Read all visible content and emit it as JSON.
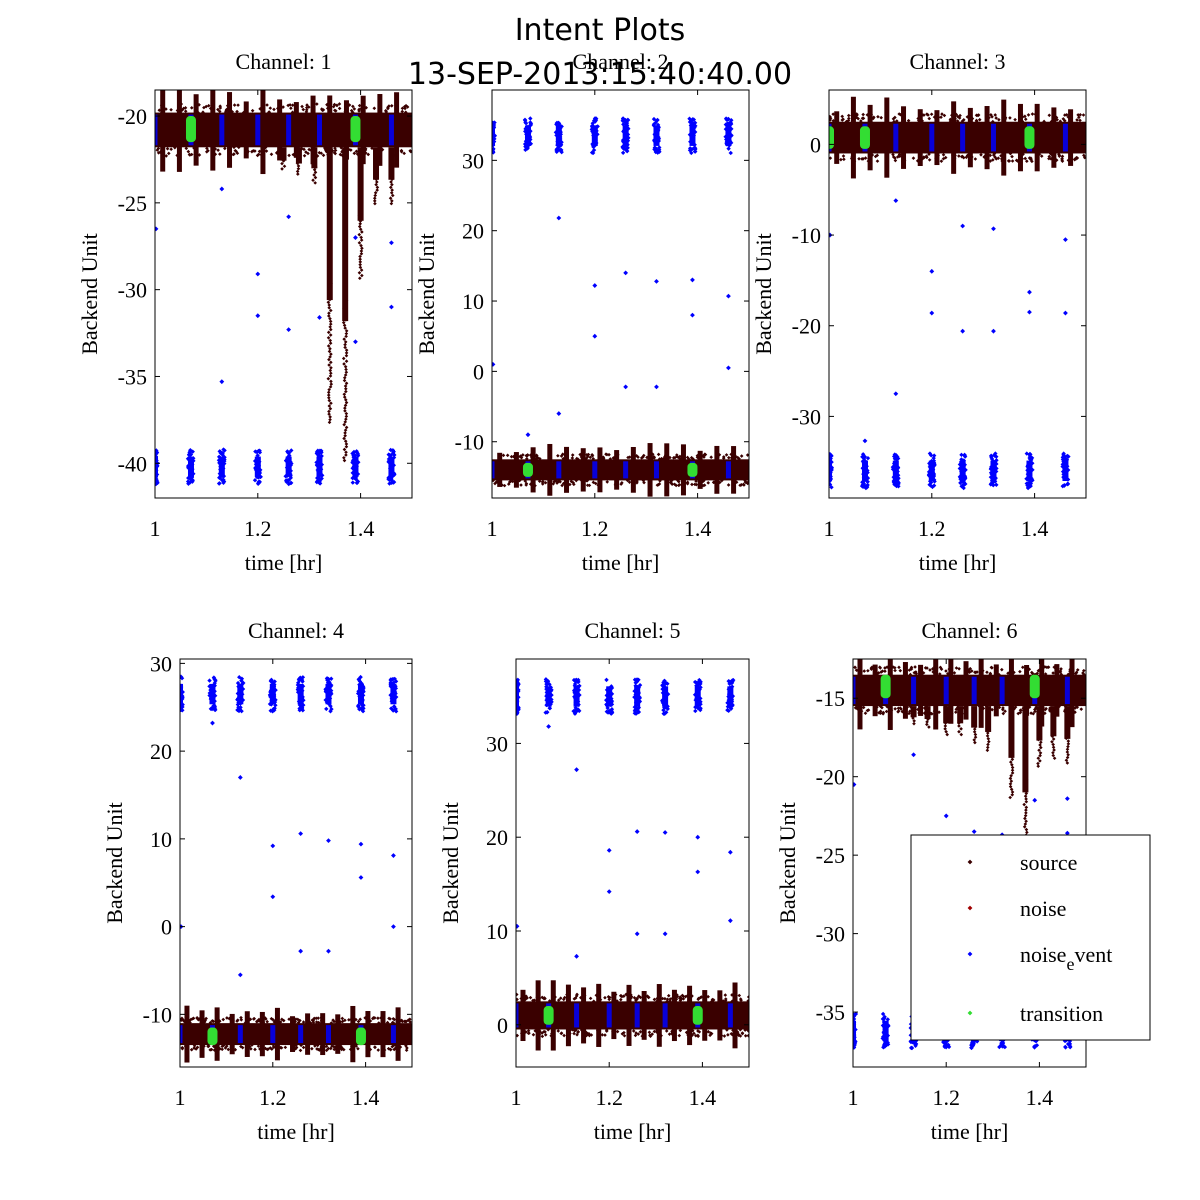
{
  "figure": {
    "title": "Intent Plots",
    "subtitle": "13-SEP-2013:15:40:40.00"
  },
  "colors": {
    "source": "#3a0000",
    "noise": "#a00000",
    "noise_event": "#0000ff",
    "transition": "#33dd33",
    "axes": "#000000",
    "background": "#ffffff"
  },
  "legend": {
    "placement": "lower-right of Channel 6",
    "entries": [
      {
        "label": "source",
        "series": "source"
      },
      {
        "label": "noise",
        "series": "noise"
      },
      {
        "label": "noise",
        "subscript": "e",
        "label_tail": "vent",
        "series": "noise_event"
      },
      {
        "label": "transition",
        "series": "transition"
      }
    ]
  },
  "chart_data": [
    {
      "type": "scatter",
      "title": "Channel: 1",
      "xlabel": "time [hr]",
      "ylabel": "Backend Unit",
      "xlim": [
        1,
        1.5
      ],
      "ylim": [
        -42,
        -18.5
      ],
      "xticks": [
        "1",
        "1.2",
        "1.4"
      ],
      "yticks": [
        "-20",
        "-25",
        "-30",
        "-35",
        "-40"
      ],
      "grid": false,
      "series": [
        {
          "key": "source",
          "band": [
            -21.8,
            -19.8
          ],
          "tails": [
            {
              "x": 1.25,
              "to": -23.2
            },
            {
              "x": 1.28,
              "to": -23.5
            },
            {
              "x": 1.31,
              "to": -24.0
            },
            {
              "x": 1.34,
              "to": -37.8
            },
            {
              "x": 1.37,
              "to": -40.0
            },
            {
              "x": 1.4,
              "to": -29.5
            },
            {
              "x": 1.43,
              "to": -25.2
            },
            {
              "x": 1.46,
              "to": -25.2
            }
          ]
        },
        {
          "key": "noise_event",
          "clusters_at": -40.2,
          "cluster_x": [
            1.0,
            1.07,
            1.13,
            1.2,
            1.26,
            1.32,
            1.39,
            1.46
          ],
          "outliers": [
            [
              1.0,
              -26.5
            ],
            [
              1.13,
              -35.3
            ],
            [
              1.2,
              -29.1
            ],
            [
              1.2,
              -31.5
            ],
            [
              1.26,
              -25.8
            ],
            [
              1.26,
              -32.3
            ],
            [
              1.32,
              -31.6
            ],
            [
              1.39,
              -33.0
            ],
            [
              1.39,
              -27.0
            ],
            [
              1.46,
              -27.3
            ],
            [
              1.46,
              -31.0
            ],
            [
              1.13,
              -24.2
            ]
          ]
        },
        {
          "key": "transition",
          "band": [
            -21.5,
            -20.0
          ],
          "cluster_x": [
            1.07,
            1.39
          ]
        }
      ]
    },
    {
      "type": "scatter",
      "title": "Channel: 2",
      "xlabel": "time [hr]",
      "ylabel": "Backend Unit",
      "xlim": [
        1,
        1.5
      ],
      "ylim": [
        -18,
        40
      ],
      "xticks": [
        "1",
        "1.2",
        "1.4"
      ],
      "yticks": [
        "30",
        "20",
        "10",
        "0",
        "-10"
      ],
      "grid": false,
      "series": [
        {
          "key": "source",
          "band": [
            -15.5,
            -12.5
          ],
          "tails": []
        },
        {
          "key": "noise_event",
          "clusters_at": 33.5,
          "cluster_x": [
            1.0,
            1.07,
            1.13,
            1.2,
            1.26,
            1.32,
            1.39,
            1.46
          ],
          "outliers": [
            [
              1.0,
              1.0
            ],
            [
              1.13,
              21.8
            ],
            [
              1.13,
              -6.0
            ],
            [
              1.2,
              12.2
            ],
            [
              1.2,
              5.0
            ],
            [
              1.26,
              14.0
            ],
            [
              1.26,
              -2.2
            ],
            [
              1.32,
              12.8
            ],
            [
              1.32,
              -2.2
            ],
            [
              1.39,
              13.0
            ],
            [
              1.39,
              8.0
            ],
            [
              1.46,
              10.7
            ],
            [
              1.46,
              0.5
            ],
            [
              1.07,
              -9.0
            ]
          ]
        },
        {
          "key": "transition",
          "band": [
            -15.0,
            -13.0
          ],
          "cluster_x": [
            1.07,
            1.39
          ]
        }
      ]
    },
    {
      "type": "scatter",
      "title": "Channel: 3",
      "xlabel": "time [hr]",
      "ylabel": "Backend Unit",
      "xlim": [
        1,
        1.5
      ],
      "ylim": [
        -39,
        6
      ],
      "xticks": [
        "1",
        "1.2",
        "1.4"
      ],
      "yticks": [
        "0",
        "-10",
        "-20",
        "-30"
      ],
      "grid": false,
      "series": [
        {
          "key": "source",
          "band": [
            -1.0,
            2.5
          ],
          "tails": []
        },
        {
          "key": "noise_event",
          "clusters_at": -36.0,
          "cluster_x": [
            1.0,
            1.07,
            1.13,
            1.2,
            1.26,
            1.32,
            1.39,
            1.46
          ],
          "outliers": [
            [
              1.0,
              -10.0
            ],
            [
              1.13,
              -6.2
            ],
            [
              1.13,
              -27.5
            ],
            [
              1.2,
              -14.0
            ],
            [
              1.2,
              -18.6
            ],
            [
              1.26,
              -9.0
            ],
            [
              1.26,
              -20.6
            ],
            [
              1.32,
              -9.3
            ],
            [
              1.32,
              -20.6
            ],
            [
              1.39,
              -16.3
            ],
            [
              1.39,
              -18.5
            ],
            [
              1.46,
              -10.5
            ],
            [
              1.46,
              -18.6
            ],
            [
              1.07,
              -32.7
            ]
          ]
        },
        {
          "key": "transition",
          "band": [
            -0.5,
            2.0
          ],
          "cluster_x": [
            1.0,
            1.07,
            1.39
          ]
        }
      ]
    },
    {
      "type": "scatter",
      "title": "Channel: 4",
      "xlabel": "time [hr]",
      "ylabel": "Backend Unit",
      "xlim": [
        1,
        1.5
      ],
      "ylim": [
        -16,
        30.5
      ],
      "xticks": [
        "1",
        "1.2",
        "1.4"
      ],
      "yticks": [
        "30",
        "20",
        "10",
        "0",
        "-10"
      ],
      "grid": false,
      "series": [
        {
          "key": "source",
          "band": [
            -13.5,
            -11.0
          ],
          "tails": []
        },
        {
          "key": "noise_event",
          "clusters_at": 26.5,
          "cluster_x": [
            1.0,
            1.07,
            1.13,
            1.2,
            1.26,
            1.32,
            1.39,
            1.46
          ],
          "outliers": [
            [
              1.0,
              0.0
            ],
            [
              1.13,
              17.0
            ],
            [
              1.13,
              -5.5
            ],
            [
              1.2,
              9.2
            ],
            [
              1.2,
              3.4
            ],
            [
              1.26,
              10.6
            ],
            [
              1.26,
              -2.8
            ],
            [
              1.32,
              9.8
            ],
            [
              1.32,
              -2.8
            ],
            [
              1.39,
              5.6
            ],
            [
              1.39,
              9.4
            ],
            [
              1.46,
              8.1
            ],
            [
              1.46,
              0.0
            ],
            [
              1.07,
              23.2
            ]
          ]
        },
        {
          "key": "transition",
          "band": [
            -13.5,
            -11.5
          ],
          "cluster_x": [
            1.07,
            1.39
          ]
        }
      ]
    },
    {
      "type": "scatter",
      "title": "Channel: 5",
      "xlabel": "time [hr]",
      "ylabel": "Backend Unit",
      "xlim": [
        1,
        1.5
      ],
      "ylim": [
        -4.5,
        39
      ],
      "xticks": [
        "1",
        "1.2",
        "1.4"
      ],
      "yticks": [
        "30",
        "20",
        "10",
        "0"
      ],
      "grid": false,
      "series": [
        {
          "key": "source",
          "band": [
            -0.5,
            2.5
          ],
          "tails": []
        },
        {
          "key": "noise_event",
          "clusters_at": 35.0,
          "cluster_x": [
            1.0,
            1.07,
            1.13,
            1.2,
            1.26,
            1.32,
            1.39,
            1.46
          ],
          "outliers": [
            [
              1.0,
              10.5
            ],
            [
              1.13,
              27.2
            ],
            [
              1.13,
              7.3
            ],
            [
              1.2,
              18.6
            ],
            [
              1.2,
              14.2
            ],
            [
              1.26,
              20.6
            ],
            [
              1.26,
              9.7
            ],
            [
              1.32,
              20.5
            ],
            [
              1.32,
              9.7
            ],
            [
              1.39,
              20.0
            ],
            [
              1.39,
              16.3
            ],
            [
              1.46,
              18.4
            ],
            [
              1.46,
              11.1
            ],
            [
              1.07,
              31.8
            ]
          ]
        },
        {
          "key": "transition",
          "band": [
            0.0,
            2.0
          ],
          "cluster_x": [
            1.07,
            1.39
          ]
        }
      ]
    },
    {
      "type": "scatter",
      "title": "Channel: 6",
      "xlabel": "time [hr]",
      "ylabel": "Backend Unit",
      "xlim": [
        1,
        1.5
      ],
      "ylim": [
        -38.5,
        -12.5
      ],
      "xticks": [
        "1",
        "1.2",
        "1.4"
      ],
      "yticks": [
        "-15",
        "-20",
        "-25",
        "-30",
        "-35"
      ],
      "grid": false,
      "series": [
        {
          "key": "source",
          "band": [
            -15.5,
            -13.5
          ],
          "tails": [
            {
              "x": 1.13,
              "to": -16.8
            },
            {
              "x": 1.16,
              "to": -17.0
            },
            {
              "x": 1.2,
              "to": -17.5
            },
            {
              "x": 1.23,
              "to": -17.5
            },
            {
              "x": 1.26,
              "to": -18.0
            },
            {
              "x": 1.29,
              "to": -18.5
            },
            {
              "x": 1.34,
              "to": -21.5
            },
            {
              "x": 1.37,
              "to": -25.5
            },
            {
              "x": 1.4,
              "to": -19.5
            },
            {
              "x": 1.43,
              "to": -19.0
            },
            {
              "x": 1.46,
              "to": -19.3
            }
          ]
        },
        {
          "key": "noise_event",
          "clusters_at": -36.2,
          "cluster_x": [
            1.0,
            1.07,
            1.13,
            1.2,
            1.26,
            1.32,
            1.39,
            1.46
          ],
          "outliers": [
            [
              1.0,
              -20.5
            ],
            [
              1.13,
              -18.6
            ],
            [
              1.2,
              -24.0
            ],
            [
              1.2,
              -22.5
            ],
            [
              1.26,
              -23.5
            ],
            [
              1.26,
              -26.4
            ],
            [
              1.32,
              -23.7
            ],
            [
              1.39,
              -21.5
            ],
            [
              1.46,
              -21.4
            ],
            [
              1.46,
              -23.6
            ]
          ]
        },
        {
          "key": "transition",
          "band": [
            -15.0,
            -13.5
          ],
          "cluster_x": [
            1.07,
            1.39
          ]
        }
      ]
    }
  ]
}
